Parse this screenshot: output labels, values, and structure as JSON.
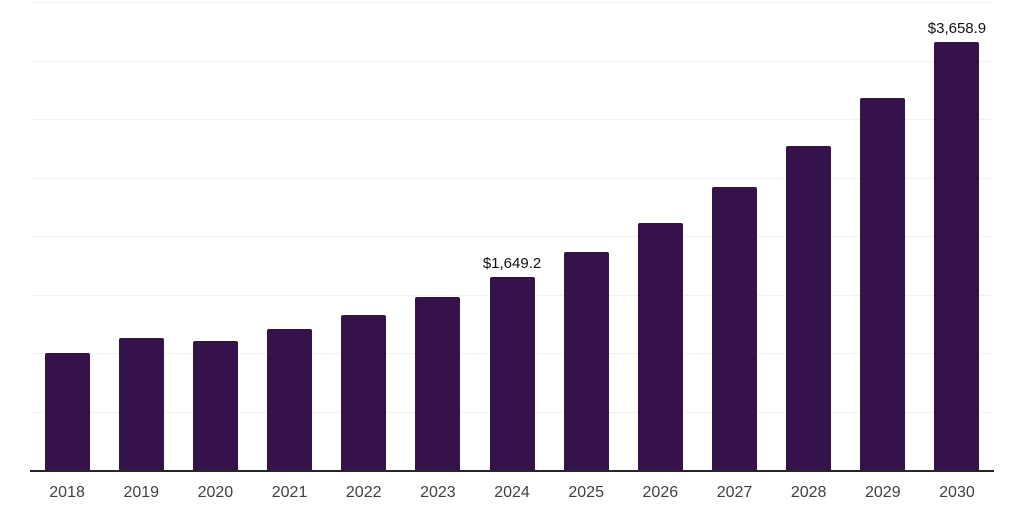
{
  "chart_data": {
    "type": "bar",
    "title": "",
    "xlabel": "",
    "ylabel": "",
    "categories": [
      "2018",
      "2019",
      "2020",
      "2021",
      "2022",
      "2023",
      "2024",
      "2025",
      "2026",
      "2027",
      "2028",
      "2029",
      "2030"
    ],
    "values": [
      997,
      1130,
      1105,
      1202,
      1327,
      1478,
      1649.2,
      1865,
      2113,
      2416,
      2769,
      3177,
      3658.9
    ],
    "value_labels": {
      "2024": "$1,649.2",
      "2030": "$3,658.9"
    },
    "ylim": [
      0,
      4000
    ],
    "gridline_step": 500,
    "grid": true,
    "legend": false,
    "y_axis_ticks_visible": false,
    "colors": {
      "bar": "#351249",
      "gridline": "#f1f1f1",
      "axis_line": "#262626",
      "tick_label": "#404040",
      "value_label": "#111111",
      "background": "#ffffff"
    }
  }
}
